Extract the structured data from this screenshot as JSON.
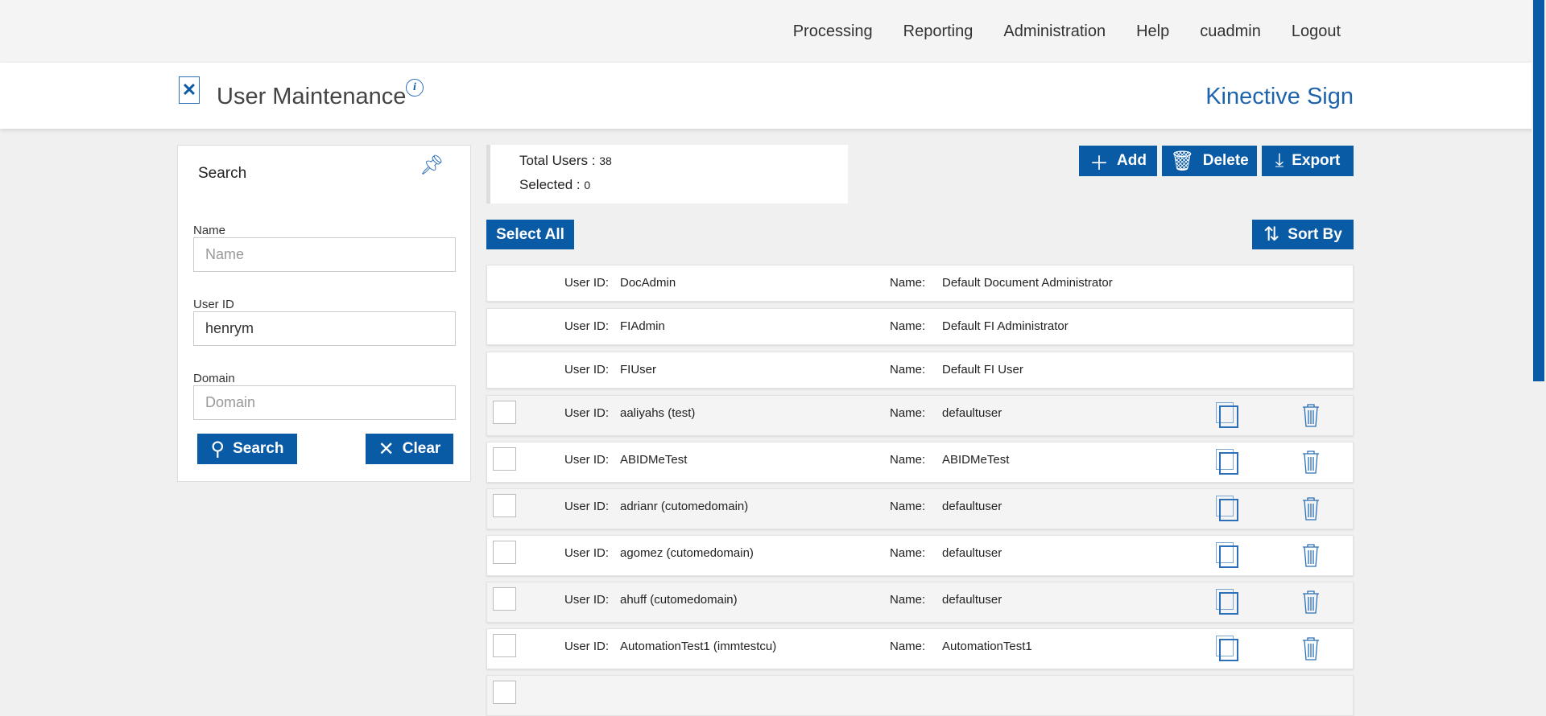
{
  "nav": {
    "items": [
      "Processing",
      "Reporting",
      "Administration",
      "Help",
      "cuadmin",
      "Logout"
    ]
  },
  "header": {
    "title": "User Maintenance",
    "brand": "Kinective Sign"
  },
  "search": {
    "title": "Search",
    "name_label": "Name",
    "name_placeholder": "Name",
    "userid_label": "User ID",
    "userid_value": "henrym",
    "domain_label": "Domain",
    "domain_placeholder": "Domain",
    "search_button": "Search",
    "clear_button": "Clear"
  },
  "stats": {
    "total_label": "Total Users :",
    "total_value": "38",
    "selected_label": "Selected :",
    "selected_value": "0"
  },
  "toolbar": {
    "add": "Add",
    "delete": "Delete",
    "export": "Export",
    "select_all": "Select All",
    "sort_by": "Sort By"
  },
  "labels": {
    "user_id": "User ID:",
    "name": "Name:"
  },
  "users": [
    {
      "id": "DocAdmin",
      "name": "Default Document Administrator",
      "system": true
    },
    {
      "id": "FIAdmin",
      "name": "Default FI Administrator",
      "system": true
    },
    {
      "id": "FIUser",
      "name": "Default FI User",
      "system": true
    },
    {
      "id": "aaliyahs (test)",
      "name": "defaultuser"
    },
    {
      "id": "ABIDMeTest",
      "name": "ABIDMeTest"
    },
    {
      "id": "adrianr (cutomedomain)",
      "name": "defaultuser"
    },
    {
      "id": "agomez (cutomedomain)",
      "name": "defaultuser"
    },
    {
      "id": "ahuff (cutomedomain)",
      "name": "defaultuser"
    },
    {
      "id": "AutomationTest1 (immtestcu)",
      "name": "AutomationTest1"
    },
    {
      "id": "",
      "name": ""
    }
  ],
  "colors": {
    "accent": "#0a5ba6"
  }
}
